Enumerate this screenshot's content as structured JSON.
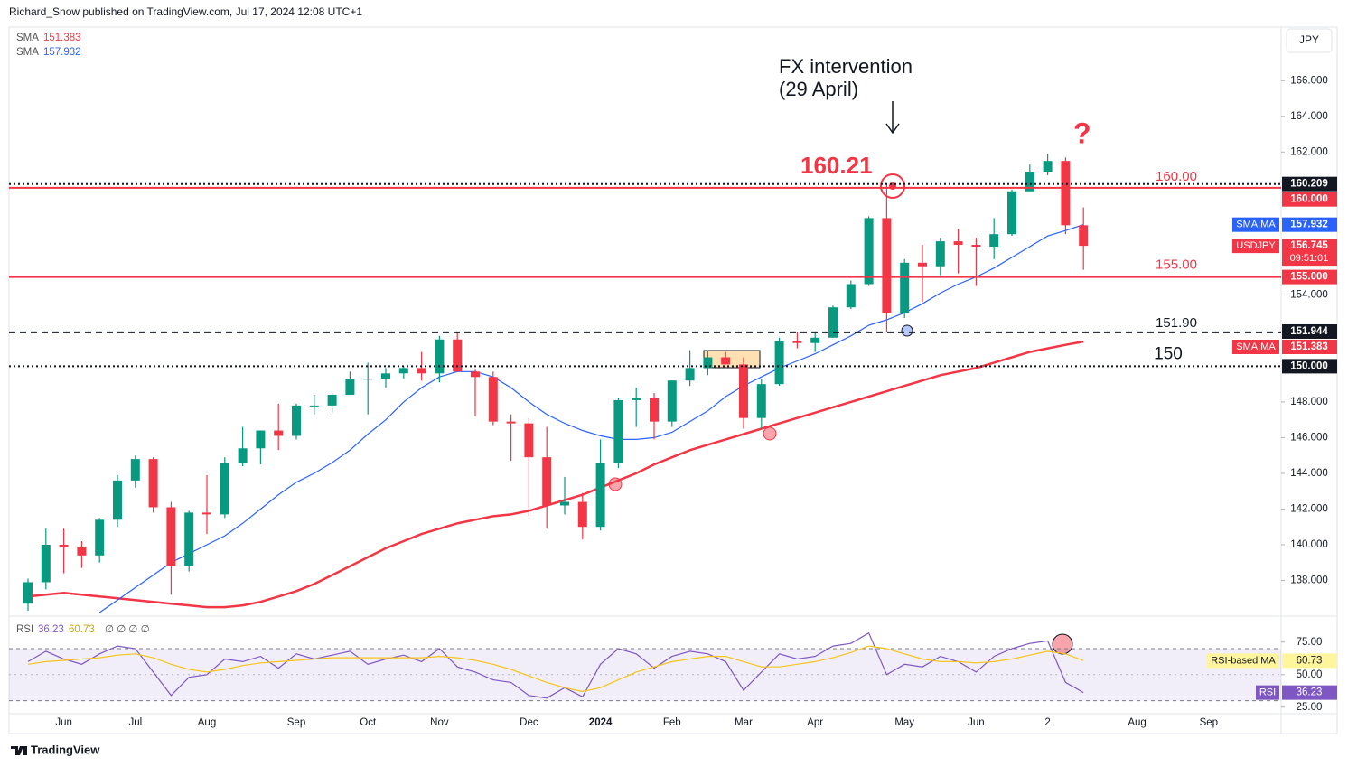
{
  "header": "Richard_Snow published on TradingView.com, Jul 17, 2024 12:08 UTC+1",
  "currency": "JPY",
  "brand": "TradingView",
  "chart_data": [
    {
      "type": "candlestick",
      "categories": [
        null,
        null,
        "Jun",
        null,
        null,
        null,
        "Jul",
        null,
        null,
        null,
        "Aug",
        null,
        null,
        null,
        null,
        "Sep",
        null,
        null,
        null,
        "Oct",
        null,
        null,
        null,
        "Nov",
        null,
        null,
        null,
        null,
        "Dec",
        null,
        null,
        null,
        "2024",
        null,
        null,
        null,
        "Feb",
        null,
        null,
        null,
        "Mar",
        null,
        null,
        null,
        "Apr",
        null,
        null,
        null,
        null,
        "May",
        null,
        null,
        null,
        "Jun",
        null,
        null,
        null,
        "2",
        null,
        null,
        null,
        null,
        "Aug",
        null,
        null,
        null,
        "Sep",
        null
      ],
      "open": [
        136.7,
        137.9,
        140.0,
        139.9,
        139.4,
        141.4,
        143.6,
        144.8,
        142.1,
        138.8,
        141.8,
        141.7,
        144.6,
        145.4,
        146.4,
        146.1,
        147.8,
        147.8,
        148.4,
        149.3,
        149.3,
        149.6,
        149.9,
        149.6,
        151.5,
        149.7,
        149.4,
        146.9,
        146.8,
        144.9,
        142.2,
        142.4,
        141.0,
        144.6,
        148.1,
        148.2,
        146.9,
        149.2,
        149.9,
        150.5,
        150.1,
        147.1,
        149.0,
        151.4,
        151.3,
        151.6,
        153.3,
        154.6,
        158.3,
        153.0,
        155.8,
        155.6,
        157.0,
        156.8,
        156.7,
        157.4,
        159.8,
        160.9,
        161.5,
        157.9,
        null,
        null,
        null,
        null,
        null,
        null,
        null,
        null
      ],
      "high": [
        138.1,
        140.9,
        140.9,
        140.2,
        141.5,
        143.9,
        145.0,
        144.9,
        142.4,
        141.9,
        143.9,
        144.9,
        146.6,
        146.4,
        147.9,
        147.9,
        148.4,
        148.5,
        149.7,
        150.2,
        149.9,
        150.0,
        150.8,
        151.7,
        151.9,
        149.8,
        149.7,
        147.3,
        147.1,
        146.6,
        143.8,
        142.9,
        145.9,
        148.2,
        148.8,
        148.5,
        149.2,
        150.9,
        150.9,
        150.8,
        150.5,
        149.3,
        151.6,
        151.9,
        151.9,
        153.4,
        154.8,
        158.4,
        160.21,
        156.0,
        156.8,
        157.2,
        157.7,
        157.2,
        158.3,
        159.9,
        161.3,
        161.9,
        161.7,
        158.9,
        null,
        null,
        null,
        null,
        null,
        null,
        null,
        null
      ],
      "low": [
        136.3,
        137.5,
        138.4,
        138.7,
        139.0,
        141.0,
        143.2,
        141.8,
        137.2,
        138.5,
        140.6,
        141.5,
        144.4,
        144.5,
        145.3,
        145.9,
        147.3,
        147.4,
        148.4,
        147.3,
        148.8,
        149.3,
        149.2,
        149.1,
        149.7,
        147.2,
        146.7,
        144.7,
        141.6,
        140.9,
        141.7,
        140.3,
        140.8,
        144.3,
        146.6,
        145.9,
        146.6,
        148.9,
        149.5,
        150.1,
        146.5,
        146.5,
        148.9,
        151.0,
        150.8,
        151.6,
        153.2,
        154.5,
        151.9,
        152.7,
        153.6,
        155.1,
        155.2,
        154.5,
        156.0,
        157.3,
        159.8,
        160.7,
        157.4,
        155.4,
        null,
        null,
        null,
        null,
        null,
        null,
        null,
        null
      ],
      "close": [
        137.9,
        140.0,
        139.9,
        139.4,
        141.4,
        143.6,
        144.8,
        142.1,
        138.8,
        141.8,
        141.7,
        144.6,
        145.4,
        146.4,
        146.1,
        147.8,
        147.8,
        148.4,
        149.3,
        149.3,
        149.6,
        149.9,
        149.6,
        151.5,
        149.7,
        149.4,
        146.9,
        146.8,
        144.9,
        142.2,
        142.4,
        141.0,
        144.6,
        148.1,
        148.2,
        146.9,
        149.2,
        149.9,
        150.5,
        150.1,
        147.1,
        149.0,
        151.4,
        151.3,
        151.6,
        153.3,
        154.6,
        158.3,
        153.0,
        155.8,
        155.6,
        157.0,
        156.8,
        156.7,
        157.4,
        159.8,
        160.9,
        161.5,
        157.9,
        156.745,
        null,
        null,
        null,
        null,
        null,
        null,
        null,
        null
      ],
      "up_color": "#089981",
      "down_color": "#f23645",
      "series": [
        {
          "name": "SMA",
          "color": "#f23645",
          "values": [
            137.1,
            137.2,
            137.3,
            137.2,
            137.1,
            137.0,
            136.9,
            136.8,
            136.7,
            136.6,
            136.5,
            136.5,
            136.6,
            136.8,
            137.1,
            137.4,
            137.8,
            138.3,
            138.8,
            139.3,
            139.8,
            140.2,
            140.6,
            140.9,
            141.2,
            141.4,
            141.6,
            141.7,
            141.9,
            142.2,
            142.5,
            142.8,
            143.2,
            143.6,
            144.0,
            144.5,
            144.9,
            145.3,
            145.6,
            145.9,
            146.2,
            146.5,
            146.8,
            147.1,
            147.4,
            147.7,
            148.0,
            148.3,
            148.6,
            148.9,
            149.2,
            149.5,
            149.7,
            149.9,
            150.2,
            150.5,
            150.8,
            151.0,
            151.2,
            151.383,
            null,
            null,
            null,
            null,
            null,
            null,
            null,
            null
          ]
        },
        {
          "name": "SMA",
          "color": "#2962ff",
          "values": [
            null,
            null,
            null,
            null,
            136.2,
            136.9,
            137.6,
            138.3,
            139.0,
            139.5,
            140.0,
            140.5,
            141.2,
            142.0,
            142.8,
            143.5,
            144.0,
            144.6,
            145.3,
            146.2,
            147.0,
            148.0,
            148.8,
            149.4,
            149.7,
            149.7,
            149.4,
            148.8,
            148.0,
            147.3,
            146.8,
            146.4,
            146.1,
            145.9,
            145.9,
            146.0,
            146.3,
            146.9,
            147.5,
            148.3,
            148.9,
            149.4,
            149.9,
            150.3,
            150.7,
            151.2,
            151.7,
            152.3,
            152.6,
            153.0,
            153.5,
            154.1,
            154.6,
            155.0,
            155.5,
            156.1,
            156.7,
            157.3,
            157.6,
            157.932,
            null,
            null,
            null,
            null,
            null,
            null,
            null,
            null
          ]
        }
      ],
      "ylim": [
        136,
        169
      ],
      "yticks": [
        {
          "value": 166,
          "label": "166.000"
        },
        {
          "value": 164,
          "label": "164.000"
        },
        {
          "value": 162,
          "label": "162.000"
        },
        {
          "value": 154,
          "label": "154.000"
        },
        {
          "value": 148,
          "label": "148.000"
        },
        {
          "value": 146,
          "label": "146.000"
        },
        {
          "value": 144,
          "label": "144.000"
        },
        {
          "value": 142,
          "label": "142.000"
        },
        {
          "value": 140,
          "label": "140.000"
        },
        {
          "value": 138,
          "label": "138.000"
        }
      ],
      "grid": false,
      "levels": [
        {
          "value": 160.209,
          "style": "dotted",
          "color": "#131722"
        },
        {
          "value": 160,
          "label": "160.00",
          "style": "solid",
          "color": "#f23645"
        },
        {
          "value": 155,
          "label": "155.00",
          "style": "solid",
          "color": "#f23645"
        },
        {
          "value": 151.9,
          "label": "151.90",
          "style": "dashed",
          "color": "#131722"
        },
        {
          "value": 150,
          "style": "dotted",
          "color": "#131722"
        }
      ],
      "axis_badges": [
        {
          "value": 160.209,
          "color": "#131722"
        },
        {
          "value": 160,
          "label": "160.000",
          "color": "#f23645"
        },
        {
          "name": "SMA:MA",
          "value": 157.932,
          "color": "#2962ff"
        },
        {
          "name": "USDJPY",
          "value": 156.745,
          "sub": "09:51:01",
          "color": "#f23645"
        },
        {
          "value": 155,
          "label": "155.000",
          "color": "#f23645"
        },
        {
          "value": 151.944,
          "color": "#131722"
        },
        {
          "name": "SMA:MA",
          "value": 151.383,
          "color": "#f23645"
        },
        {
          "value": 150,
          "label": "150.000",
          "color": "#131722"
        }
      ],
      "annotations": [
        "FX intervention",
        "(29 April)",
        "160.21",
        "?"
      ]
    },
    {
      "type": "line",
      "series": [
        {
          "name": "RSI",
          "color": "#7e57c2",
          "values": [
            60,
            68,
            62,
            58,
            66,
            72,
            70,
            52,
            34,
            48,
            50,
            62,
            60,
            64,
            55,
            66,
            62,
            65,
            68,
            58,
            62,
            65,
            60,
            70,
            56,
            52,
            46,
            44,
            34,
            32,
            40,
            33,
            58,
            70,
            66,
            55,
            64,
            68,
            66,
            60,
            38,
            52,
            66,
            62,
            64,
            72,
            74,
            82,
            50,
            58,
            56,
            64,
            60,
            52,
            64,
            70,
            74,
            76,
            44,
            36.23,
            null,
            null,
            null,
            null,
            null,
            null,
            null,
            null
          ]
        },
        {
          "name": "RSI-based MA",
          "color": "#f5c518",
          "values": [
            58,
            60,
            61,
            62,
            63,
            65,
            66,
            63,
            58,
            54,
            52,
            54,
            57,
            59,
            60,
            61,
            62,
            63,
            63,
            63,
            63,
            63,
            63,
            64,
            63,
            61,
            58,
            54,
            49,
            44,
            40,
            37,
            40,
            46,
            52,
            56,
            60,
            62,
            64,
            64,
            60,
            56,
            56,
            58,
            60,
            63,
            67,
            72,
            70,
            66,
            62,
            60,
            60,
            59,
            60,
            62,
            65,
            68,
            66,
            60.73,
            null,
            null,
            null,
            null,
            null,
            null,
            null,
            null
          ]
        }
      ],
      "legend_extra": "∅ ∅ ∅ ∅",
      "ylim": [
        20,
        95
      ],
      "yticks": [
        {
          "value": 75,
          "label": "75.00"
        },
        {
          "value": 50,
          "label": "50.00"
        },
        {
          "value": 25,
          "label": "25.00"
        }
      ],
      "band": [
        30,
        70
      ],
      "midline": 50
    }
  ]
}
